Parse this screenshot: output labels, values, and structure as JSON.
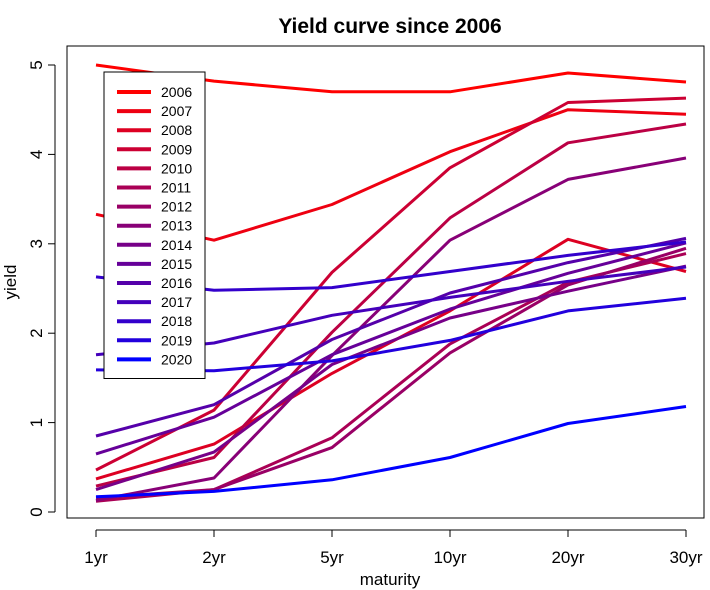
{
  "chart_data": {
    "type": "line",
    "title": "Yield curve since 2006",
    "xlabel": "maturity",
    "ylabel": "yield",
    "categories": [
      "1yr",
      "2yr",
      "5yr",
      "10yr",
      "20yr",
      "30yr"
    ],
    "ylim": [
      0,
      5
    ],
    "yticks": [
      0,
      1,
      2,
      3,
      4,
      5
    ],
    "legend_position": "top-left",
    "series": [
      {
        "name": "2006",
        "color": "#ff0000",
        "values": [
          5.0,
          4.82,
          4.7,
          4.7,
          4.91,
          4.81
        ]
      },
      {
        "name": "2007",
        "color": "#ee0011",
        "values": [
          3.33,
          3.04,
          3.44,
          4.03,
          4.5,
          4.45
        ]
      },
      {
        "name": "2008",
        "color": "#dd0022",
        "values": [
          0.37,
          0.76,
          1.55,
          2.25,
          3.05,
          2.69
        ]
      },
      {
        "name": "2009",
        "color": "#cc0033",
        "values": [
          0.47,
          1.14,
          2.68,
          3.85,
          4.58,
          4.63
        ]
      },
      {
        "name": "2010",
        "color": "#bb0044",
        "values": [
          0.29,
          0.61,
          2.01,
          3.29,
          4.13,
          4.34
        ]
      },
      {
        "name": "2011",
        "color": "#aa0055",
        "values": [
          0.12,
          0.25,
          0.83,
          1.88,
          2.57,
          2.89
        ]
      },
      {
        "name": "2012",
        "color": "#990066",
        "values": [
          0.16,
          0.25,
          0.72,
          1.78,
          2.54,
          2.95
        ]
      },
      {
        "name": "2013",
        "color": "#880077",
        "values": [
          0.13,
          0.38,
          1.75,
          3.04,
          3.72,
          3.96
        ]
      },
      {
        "name": "2014",
        "color": "#770088",
        "values": [
          0.25,
          0.67,
          1.65,
          2.17,
          2.47,
          2.75
        ]
      },
      {
        "name": "2015",
        "color": "#660099",
        "values": [
          0.65,
          1.06,
          1.76,
          2.27,
          2.67,
          3.01
        ]
      },
      {
        "name": "2016",
        "color": "#5500aa",
        "values": [
          0.85,
          1.2,
          1.93,
          2.45,
          2.79,
          3.06
        ]
      },
      {
        "name": "2017",
        "color": "#4400bb",
        "values": [
          1.76,
          1.89,
          2.2,
          2.4,
          2.58,
          2.74
        ]
      },
      {
        "name": "2018",
        "color": "#3300cc",
        "values": [
          2.63,
          2.48,
          2.51,
          2.69,
          2.87,
          3.02
        ]
      },
      {
        "name": "2019",
        "color": "#2200dd",
        "values": [
          1.59,
          1.58,
          1.69,
          1.92,
          2.25,
          2.39
        ]
      },
      {
        "name": "2020",
        "color": "#0000ff",
        "values": [
          0.17,
          0.23,
          0.36,
          0.61,
          0.99,
          1.18
        ]
      }
    ]
  }
}
